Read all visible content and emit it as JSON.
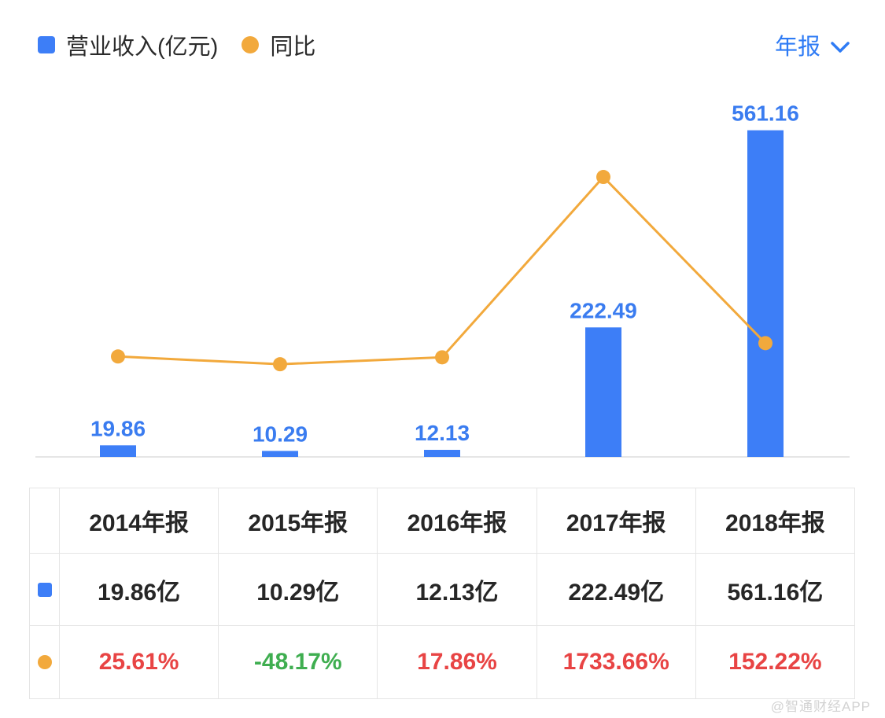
{
  "legend": {
    "revenue_label": "营业收入(亿元)",
    "yoy_label": "同比"
  },
  "period_selector": {
    "label": "年报"
  },
  "colors": {
    "bar_blue": "#3d7ef7",
    "line_orange": "#f2a93c",
    "label_blue": "#3a7cf0",
    "accent_blue": "#2e7bf5",
    "positive_red": "#e84444",
    "negative_green": "#3fae50",
    "text_dark": "#262626",
    "border_gray": "#e5e5e5",
    "watermark_gray": "#d2d2d2"
  },
  "chart_data": {
    "type": "combo",
    "categories": [
      "2014年报",
      "2015年报",
      "2016年报",
      "2017年报",
      "2018年报"
    ],
    "series": [
      {
        "name": "营业收入(亿元)",
        "type": "bar",
        "values": [
          19.86,
          10.29,
          12.13,
          222.49,
          561.16
        ],
        "labels": [
          "19.86",
          "10.29",
          "12.13",
          "222.49",
          "561.16"
        ],
        "color": "#3d7ef7",
        "axis": "left",
        "ylim": [
          0,
          585
        ]
      },
      {
        "name": "同比",
        "type": "line",
        "values": [
          25.61,
          -48.17,
          17.86,
          1733.66,
          152.22
        ],
        "color": "#f2a93c",
        "axis": "right",
        "ylim": [
          -930,
          2310
        ]
      }
    ],
    "title": "",
    "xlabel": "",
    "ylabel": "",
    "legend_position": "top",
    "grid": false
  },
  "table": {
    "header": [
      "",
      "2014年报",
      "2015年报",
      "2016年报",
      "2017年报",
      "2018年报"
    ],
    "rows": [
      {
        "icon": "revenue-bar-swatch",
        "cells": [
          "19.86亿",
          "10.29亿",
          "12.13亿",
          "222.49亿",
          "561.16亿"
        ]
      },
      {
        "icon": "yoy-dot-swatch",
        "cells": [
          "25.61%",
          "-48.17%",
          "17.86%",
          "1733.66%",
          "152.22%"
        ],
        "cell_colors": [
          "#e84444",
          "#3fae50",
          "#e84444",
          "#e84444",
          "#e84444"
        ]
      }
    ]
  },
  "watermark": "@智通财经APP"
}
